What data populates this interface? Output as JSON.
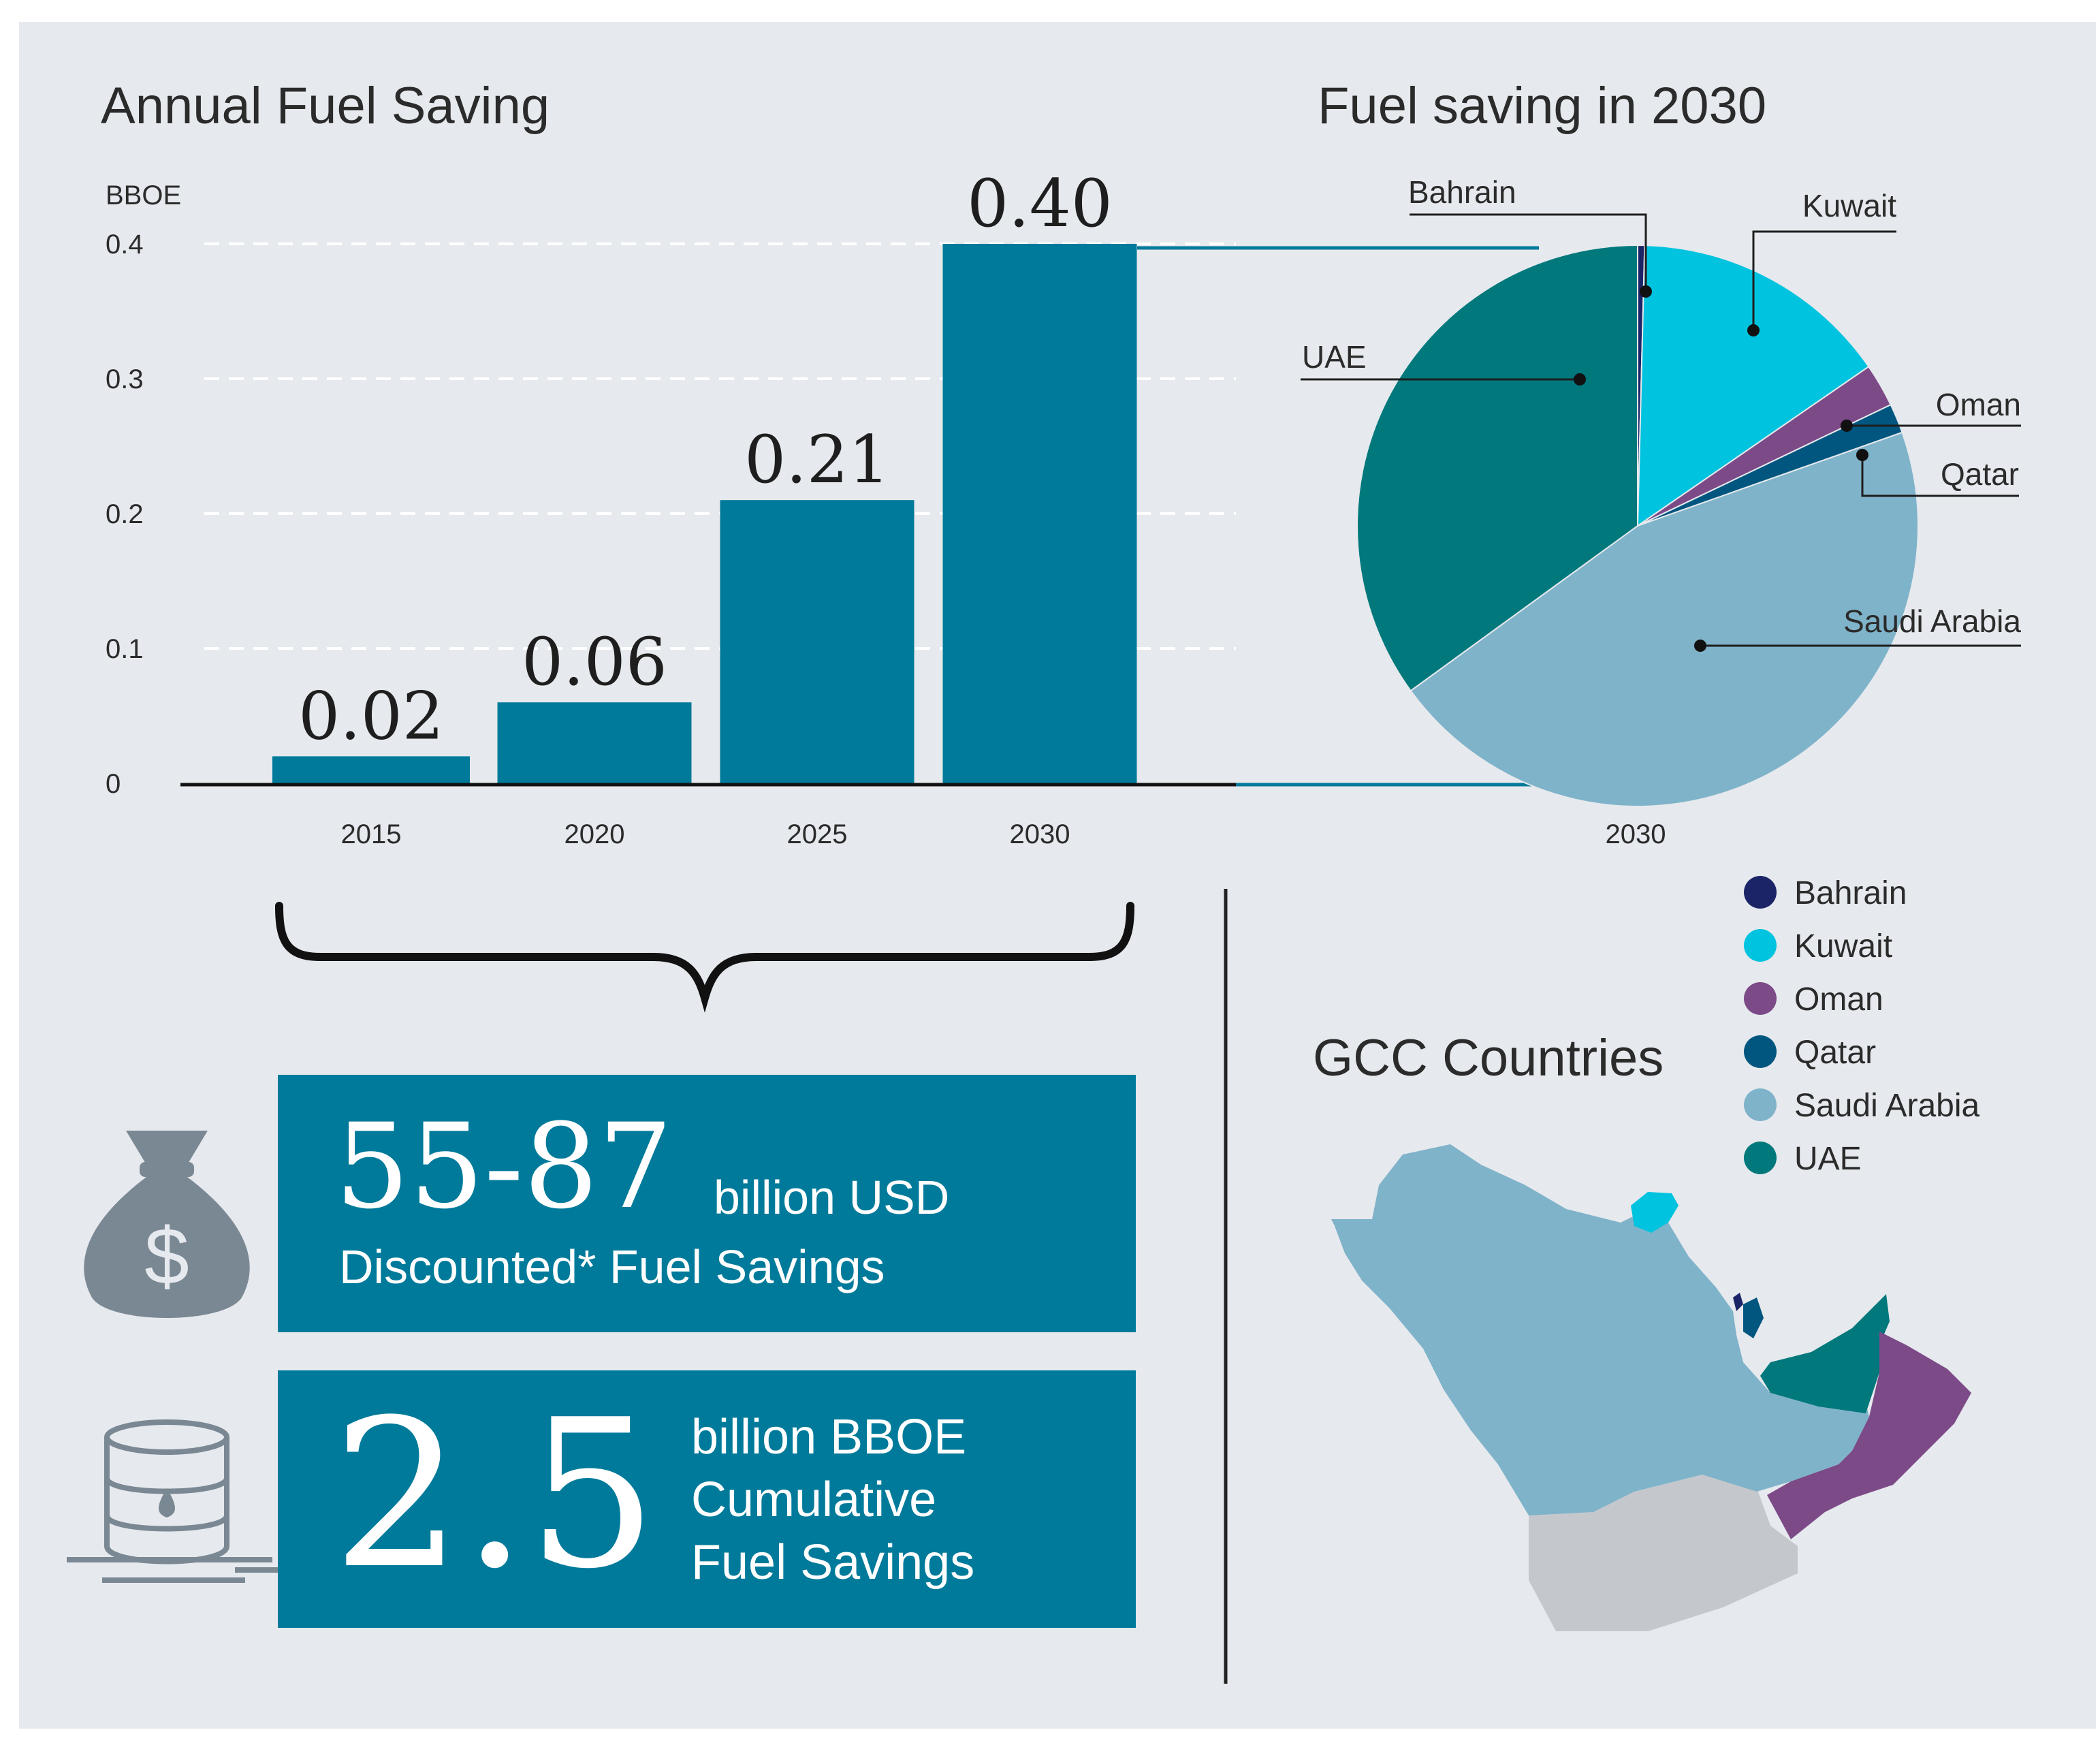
{
  "titles": {
    "bar": "Annual Fuel Saving",
    "pie": "Fuel saving in 2030",
    "map": "GCC Countries"
  },
  "colors": {
    "panel": "#e6e9ed",
    "bar": "#007a9a",
    "box": "#007a9a",
    "map_other": "#c4c8cc",
    "icon": "#7a8894"
  },
  "chart_data": [
    {
      "type": "bar",
      "title": "Annual Fuel Saving",
      "ylabel": "BBOE",
      "categories": [
        "2015",
        "2020",
        "2025",
        "2030"
      ],
      "values": [
        0.02,
        0.06,
        0.21,
        0.4
      ],
      "value_labels": [
        "0.02",
        "0.06",
        "0.21",
        "0.40"
      ],
      "yticks": [
        0,
        0.1,
        0.2,
        0.3,
        0.4
      ],
      "ytick_labels": [
        "0",
        "0.1",
        "0.2",
        "0.3",
        "0.4"
      ],
      "ylim": [
        0,
        0.4
      ],
      "grid": true
    },
    {
      "type": "pie",
      "title": "Fuel saving in 2030",
      "xlabel": "2030",
      "slices": [
        {
          "label": "Bahrain",
          "value": 0.4,
          "color": "#1a2466"
        },
        {
          "label": "Kuwait",
          "value": 15.0,
          "color": "#00c3df"
        },
        {
          "label": "Oman",
          "value": 2.5,
          "color": "#7b4a87"
        },
        {
          "label": "Qatar",
          "value": 1.7,
          "color": "#00567f"
        },
        {
          "label": "Saudi Arabia",
          "value": 45.4,
          "color": "#7fb3ca"
        },
        {
          "label": "UAE",
          "value": 35.0,
          "color": "#00787c"
        }
      ],
      "legend": [
        "Bahrain",
        "Kuwait",
        "Oman",
        "Qatar",
        "Saudi Arabia",
        "UAE"
      ],
      "legend_position": "right"
    }
  ],
  "map": {
    "countries": [
      {
        "name": "Saudi Arabia",
        "color": "#7fb3ca"
      },
      {
        "name": "Kuwait",
        "color": "#00c3df"
      },
      {
        "name": "Bahrain",
        "color": "#1a2466"
      },
      {
        "name": "Qatar",
        "color": "#00567f"
      },
      {
        "name": "UAE",
        "color": "#00787c"
      },
      {
        "name": "Oman",
        "color": "#7b4a87"
      }
    ]
  },
  "boxes": {
    "usd_value": "55-87",
    "usd_unit": "billion USD",
    "usd_desc": "Discounted* Fuel Savings",
    "bboe_value": "2.5",
    "bboe_line1": "billion BBOE",
    "bboe_line2": "Cumulative",
    "bboe_line3": "Fuel Savings"
  },
  "icons": {
    "money": "money-bag-icon",
    "money_symbol": "$",
    "barrel": "oil-barrel-icon"
  }
}
